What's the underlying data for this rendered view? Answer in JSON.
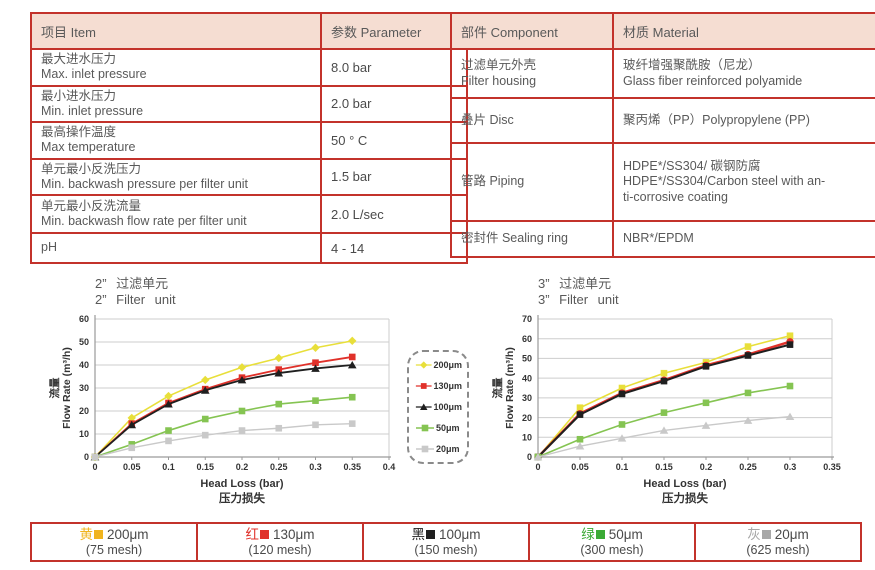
{
  "colors": {
    "table_border": "#c3322b",
    "header_bg": "#f5ddd2",
    "text_gray": "#595959",
    "grid": "#cdcdcd",
    "axis": "#9a9a9a"
  },
  "spec_table": {
    "headers": [
      "项目 Item",
      "参数 Parameter"
    ],
    "rows": [
      {
        "item_cn": "最大进水压力",
        "item_en": "Max. inlet pressure",
        "value": "8.0 bar"
      },
      {
        "item_cn": "最小进水压力",
        "item_en": "Min. inlet pressure",
        "value": "2.0 bar"
      },
      {
        "item_cn": "最高操作温度",
        "item_en": "Max temperature",
        "value": "50 ° C"
      },
      {
        "item_cn": "单元最小反洗压力",
        "item_en": "Min. backwash pressure per filter unit",
        "value": "1.5 bar"
      },
      {
        "item_cn": "单元最小反洗流量",
        "item_en": "Min. backwash flow rate per filter unit",
        "value": "2.0 L/sec"
      },
      {
        "item_cn": "pH",
        "item_en": "",
        "value": "4 - 14"
      }
    ]
  },
  "material_table": {
    "headers": [
      "部件 Component",
      "材质 Material"
    ],
    "rows": [
      {
        "component": [
          "过滤单元外壳",
          "Filter housing"
        ],
        "material": [
          "玻纤增强聚酰胺（尼龙）",
          "Glass fiber reinforced polyamide"
        ]
      },
      {
        "component": [
          "叠片 Disc"
        ],
        "material": [
          "聚丙烯（PP）Polypropylene (PP)"
        ]
      },
      {
        "component": [
          "管路 Piping"
        ],
        "material": [
          "HDPE*/SS304/ 碳钢防腐",
          "HDPE*/SS304/Carbon steel with an-",
          "ti-corrosive coating"
        ]
      },
      {
        "component": [
          "密封件 Sealing ring"
        ],
        "material": [
          "NBR*/EPDM"
        ]
      }
    ]
  },
  "chart_data": [
    {
      "type": "line",
      "title_cn": "2” 过滤单元",
      "title_en": "2” Filter unit",
      "xlabel": "Head Loss (bar)",
      "xlabel_cn": "压力损失",
      "ylabel_cn": "流量",
      "ylabel": "Flow Rate (m³/h)",
      "xlim": [
        0,
        0.4
      ],
      "ylim": [
        0,
        60
      ],
      "xtick_step": 0.05,
      "ytick_step": 10,
      "grid": "horizontal",
      "legend_position": "outside-right",
      "x": [
        0,
        0.05,
        0.1,
        0.15,
        0.2,
        0.25,
        0.3,
        0.35
      ],
      "series": [
        {
          "name": "200μm",
          "color": "#e8df3a",
          "marker": "diamond",
          "width": 1.6,
          "values": [
            0,
            17,
            26.5,
            33.5,
            39,
            43,
            47.5,
            50.5
          ]
        },
        {
          "name": "130μm",
          "color": "#e0312a",
          "marker": "square",
          "width": 1.8,
          "values": [
            0,
            14.5,
            23.5,
            29.5,
            34.5,
            38,
            41,
            43.5
          ]
        },
        {
          "name": "100μm",
          "color": "#1f1f1f",
          "marker": "triangle",
          "width": 1.8,
          "values": [
            0,
            14,
            23,
            29,
            33.5,
            36.5,
            38.5,
            40
          ]
        },
        {
          "name": "50μm",
          "color": "#85c452",
          "marker": "square",
          "width": 1.6,
          "values": [
            0,
            5.5,
            11.5,
            16.5,
            20,
            23,
            24.5,
            26
          ]
        },
        {
          "name": "20μm",
          "color": "#c9c9c9",
          "marker": "square",
          "width": 1.4,
          "values": [
            0,
            4,
            7,
            9.5,
            11.5,
            12.5,
            14,
            14.5
          ]
        }
      ]
    },
    {
      "type": "line",
      "title_cn": "3” 过滤单元",
      "title_en": "3” Filter unit",
      "xlabel": "Head Loss (bar)",
      "xlabel_cn": "压力损失",
      "ylabel_cn": "流量",
      "ylabel": "Flow Rate (m³/h)",
      "xlim": [
        0,
        0.35
      ],
      "ylim": [
        0,
        70
      ],
      "xtick_step": 0.05,
      "ytick_step": 10,
      "grid": "horizontal",
      "x": [
        0,
        0.05,
        0.1,
        0.15,
        0.2,
        0.25,
        0.3
      ],
      "series": [
        {
          "name": "200μm",
          "color": "#e8df3a",
          "marker": "square",
          "width": 1.6,
          "values": [
            0,
            25,
            35,
            42.5,
            48,
            56,
            61.5
          ]
        },
        {
          "name": "130μm",
          "color": "#e0312a",
          "marker": "circle",
          "width": 2.4,
          "values": [
            0,
            22,
            32.5,
            39,
            46.5,
            52,
            58.5
          ]
        },
        {
          "name": "100μm",
          "color": "#1f1f1f",
          "marker": "square",
          "width": 2.0,
          "values": [
            0,
            21.5,
            32,
            38.5,
            46,
            51.5,
            57
          ]
        },
        {
          "name": "50μm",
          "color": "#85c452",
          "marker": "square",
          "width": 1.6,
          "values": [
            0,
            9,
            16.5,
            22.5,
            27.5,
            32.5,
            36
          ]
        },
        {
          "name": "20μm",
          "color": "#c9c9c9",
          "marker": "triangle",
          "width": 1.4,
          "values": [
            0,
            5.5,
            9.5,
            13.5,
            16,
            18.5,
            20.5
          ]
        }
      ]
    }
  ],
  "series_legend": {
    "items": [
      {
        "label": "200μm",
        "color": "#e8df3a",
        "marker": "diamond"
      },
      {
        "label": "130μm",
        "color": "#e0312a",
        "marker": "square"
      },
      {
        "label": "100μm",
        "color": "#1f1f1f",
        "marker": "triangle"
      },
      {
        "label": "50μm",
        "color": "#85c452",
        "marker": "square"
      },
      {
        "label": "20μm",
        "color": "#c9c9c9",
        "marker": "square"
      }
    ]
  },
  "bottom_legend": {
    "items": [
      {
        "cn": "黄",
        "size": "200μm",
        "mesh": "(75 mesh)",
        "color": "#f0b41e"
      },
      {
        "cn": "红",
        "size": "130μm",
        "mesh": "(120 mesh)",
        "color": "#e0312a"
      },
      {
        "cn": "黑",
        "size": "100μm",
        "mesh": "(150 mesh)",
        "color": "#1f1f1f"
      },
      {
        "cn": "绿",
        "size": "50μm",
        "mesh": "(300 mesh)",
        "color": "#3aaa35"
      },
      {
        "cn": "灰",
        "size": "20μm",
        "mesh": "(625 mesh)",
        "color": "#a8a8a8"
      }
    ]
  }
}
